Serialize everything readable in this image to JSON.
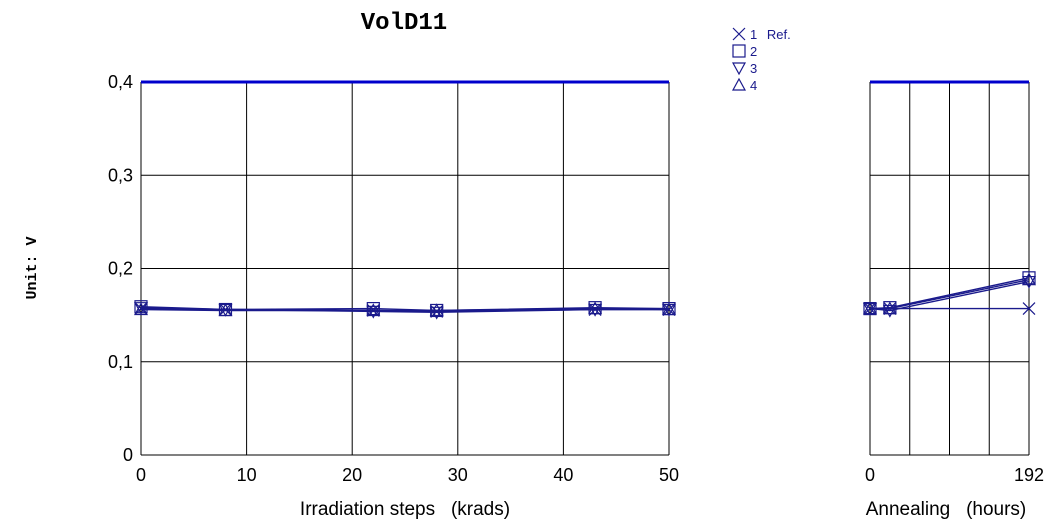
{
  "chart_data": {
    "type": "line",
    "title": "VolD11",
    "ylabel": "Unit: V",
    "ylim": [
      0,
      0.4
    ],
    "yticks": [
      "0",
      "0,1",
      "0,2",
      "0,3",
      "0,4"
    ],
    "limit_line": 0.4,
    "colors": {
      "series": "#1a1a8c",
      "limit": "#0000cc",
      "grid": "#000000"
    },
    "legend": [
      {
        "marker": "x-marker",
        "num": "1",
        "text": "Ref."
      },
      {
        "marker": "square-marker",
        "num": "2",
        "text": ""
      },
      {
        "marker": "triangle-down-marker",
        "num": "3",
        "text": ""
      },
      {
        "marker": "triangle-up-marker",
        "num": "4",
        "text": ""
      }
    ],
    "panels": [
      {
        "id": "irradiation",
        "xlabel": "Irradiation steps   (krads)",
        "xlim": [
          0,
          50
        ],
        "xticks": [
          "0",
          "10",
          "20",
          "30",
          "40",
          "50"
        ],
        "series": [
          {
            "name": "1 Ref.",
            "marker": "x",
            "points": [
              [
                0,
                0.157
              ],
              [
                8,
                0.156
              ],
              [
                22,
                0.155
              ],
              [
                28,
                0.154
              ],
              [
                43,
                0.156
              ],
              [
                50,
                0.156
              ]
            ]
          },
          {
            "name": "2",
            "marker": "square",
            "points": [
              [
                0,
                0.159
              ],
              [
                8,
                0.156
              ],
              [
                22,
                0.157
              ],
              [
                28,
                0.155
              ],
              [
                43,
                0.158
              ],
              [
                50,
                0.157
              ]
            ]
          },
          {
            "name": "3",
            "marker": "triangle-down",
            "points": [
              [
                0,
                0.158
              ],
              [
                8,
                0.156
              ],
              [
                22,
                0.154
              ],
              [
                28,
                0.153
              ],
              [
                43,
                0.156
              ],
              [
                50,
                0.156
              ]
            ]
          },
          {
            "name": "4",
            "marker": "triangle-up",
            "points": [
              [
                0,
                0.156
              ],
              [
                8,
                0.155
              ],
              [
                22,
                0.155
              ],
              [
                28,
                0.155
              ],
              [
                43,
                0.157
              ],
              [
                50,
                0.156
              ]
            ]
          }
        ]
      },
      {
        "id": "annealing",
        "xlabel": "Annealing   (hours)",
        "xlim": [
          0,
          192
        ],
        "xticks": [
          "0",
          "192"
        ],
        "xtick_values": [
          0,
          192
        ],
        "grid_x": [
          0,
          48,
          96,
          144,
          192
        ],
        "series": [
          {
            "name": "1 Ref.",
            "marker": "x",
            "points": [
              [
                0,
                0.157
              ],
              [
                24,
                0.157
              ],
              [
                192,
                0.157
              ]
            ]
          },
          {
            "name": "2",
            "marker": "square",
            "points": [
              [
                0,
                0.157
              ],
              [
                24,
                0.158
              ],
              [
                192,
                0.19
              ]
            ]
          },
          {
            "name": "3",
            "marker": "triangle-down",
            "points": [
              [
                0,
                0.157
              ],
              [
                24,
                0.155
              ],
              [
                192,
                0.186
              ]
            ]
          },
          {
            "name": "4",
            "marker": "triangle-up",
            "points": [
              [
                0,
                0.157
              ],
              [
                24,
                0.157
              ],
              [
                192,
                0.188
              ]
            ]
          }
        ]
      }
    ]
  }
}
